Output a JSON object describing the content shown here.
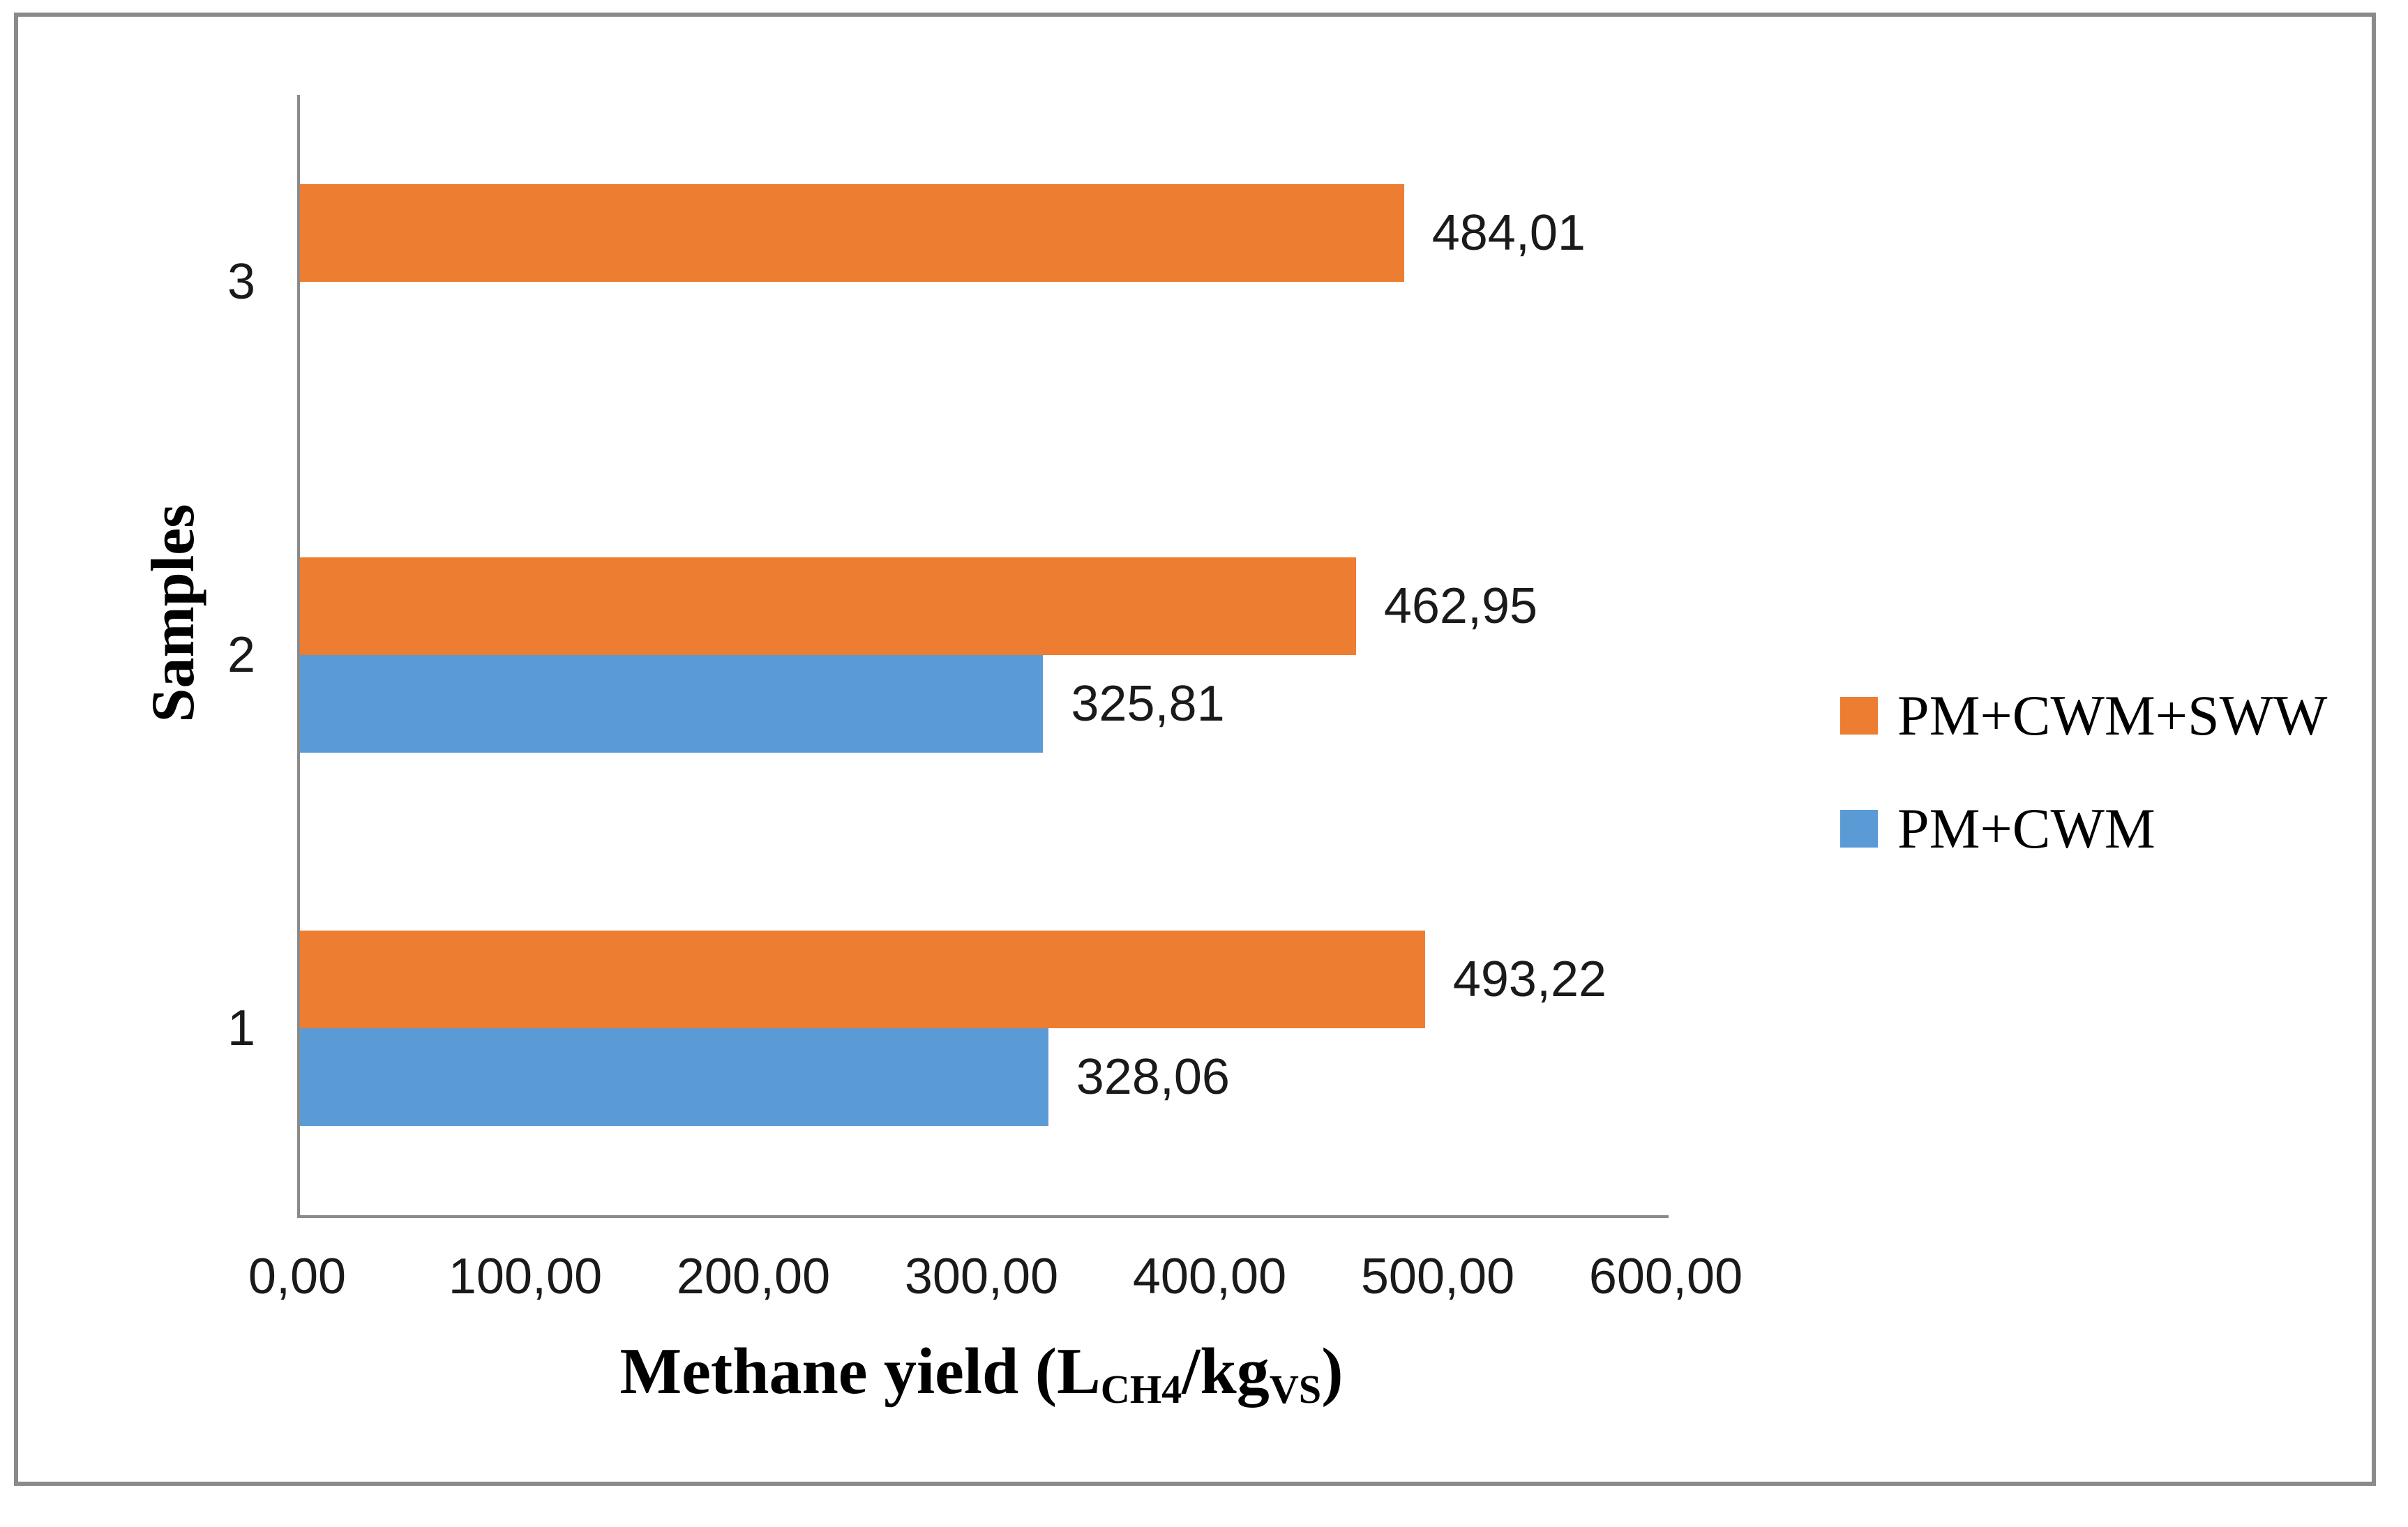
{
  "chart_data": {
    "type": "bar",
    "orientation": "horizontal",
    "ylabel": "Samples",
    "xlabel_plain": "Methane yield (LCH4/kgVS)",
    "xlabel_parts": {
      "pre": "Methane yield (L",
      "sub1": "CH4",
      "mid": "/kg",
      "sub2": "VS",
      "post": ")"
    },
    "xlim": [
      0,
      600
    ],
    "x_ticks": [
      "0,00",
      "100,00",
      "200,00",
      "300,00",
      "400,00",
      "500,00",
      "600,00"
    ],
    "x_tick_values": [
      0,
      100,
      200,
      300,
      400,
      500,
      600
    ],
    "categories_top_to_bottom": [
      "3",
      "2",
      "1"
    ],
    "series": [
      {
        "name": "PM+CWM+SWW",
        "color": "#ED7D31",
        "values_by_category": {
          "3": 484.01,
          "2": 462.95,
          "1": 493.22
        },
        "labels_by_category": {
          "3": "484,01",
          "2": "462,95",
          "1": "493,22"
        }
      },
      {
        "name": "PM+CWM",
        "color": "#5B9BD5",
        "values_by_category": {
          "3": null,
          "2": 325.81,
          "1": 328.06
        },
        "labels_by_category": {
          "3": null,
          "2": "325,81",
          "1": "328,06"
        }
      }
    ],
    "decimal_separator": ",",
    "grid": false,
    "legend_position": "right-middle",
    "axis_color": "#8A8A8A",
    "frame_color": "#8A8A8A",
    "text_color": "#1a1a1a"
  }
}
